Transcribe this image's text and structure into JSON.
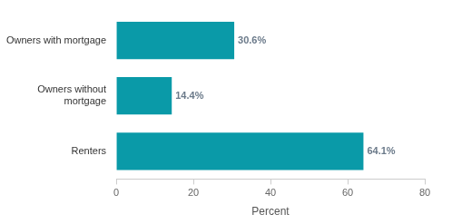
{
  "chart_data": {
    "type": "bar",
    "orientation": "horizontal",
    "categories": [
      "Owners with mortgage",
      "Owners without mortgage",
      "Renters"
    ],
    "values": [
      30.6,
      14.4,
      64.1
    ],
    "value_labels": [
      "30.6%",
      "14.4%",
      "64.1%"
    ],
    "data_labels": true,
    "color": "#0a9aa8",
    "xlabel": "Percent",
    "xlim": [
      0,
      80
    ],
    "xticks": [
      0,
      20,
      40,
      60,
      80
    ],
    "grid": false
  }
}
